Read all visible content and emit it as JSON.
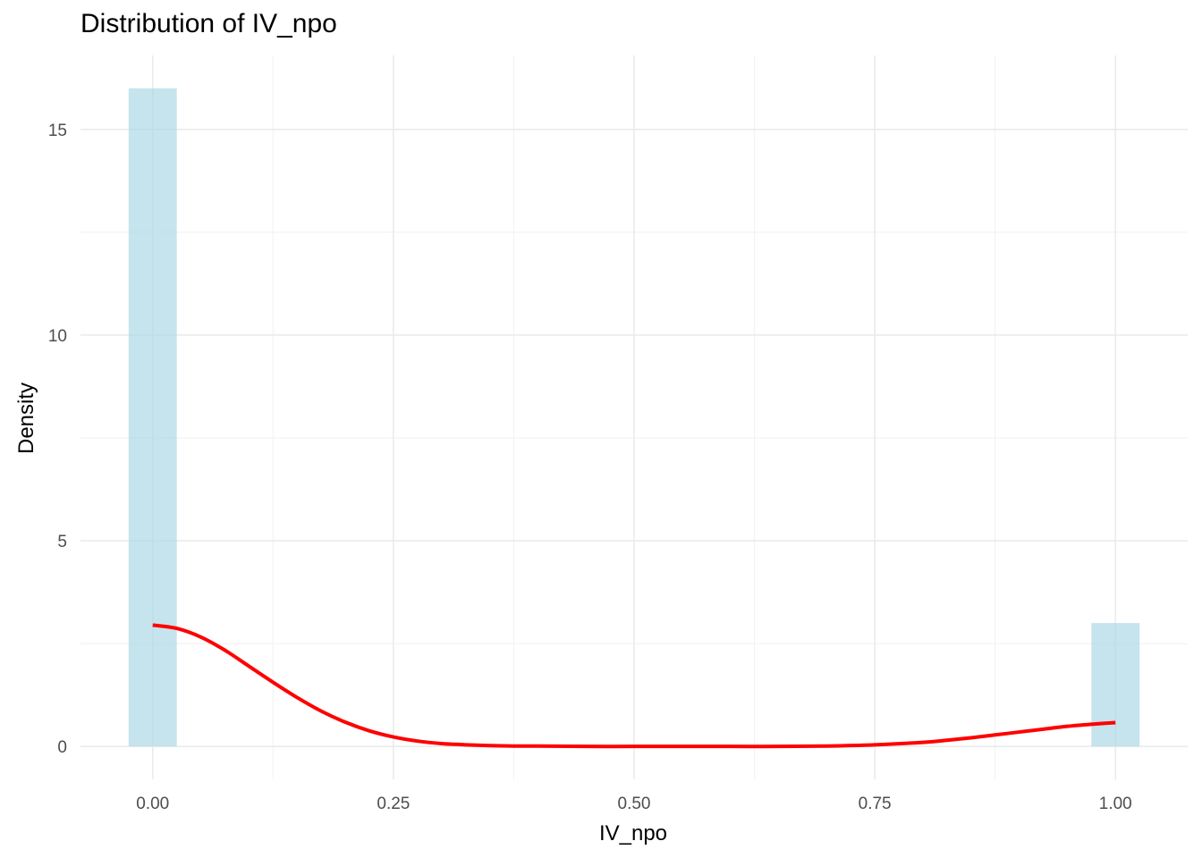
{
  "chart_data": {
    "type": "histogram",
    "title": "Distribution of IV_npo",
    "xlabel": "IV_npo",
    "ylabel": "Density",
    "xlim": [
      -0.075,
      1.075
    ],
    "ylim": [
      -0.8,
      16.8
    ],
    "x_ticks": [
      0,
      0.25,
      0.5,
      0.75,
      1
    ],
    "x_tick_labels": [
      "0.00",
      "0.25",
      "0.50",
      "0.75",
      "1.00"
    ],
    "y_ticks": [
      0,
      5,
      10,
      15
    ],
    "y_tick_labels": [
      "0",
      "5",
      "10",
      "15"
    ],
    "grid": true,
    "bin_width": 0.05,
    "bars": [
      {
        "x": 0.0,
        "density": 16.0
      },
      {
        "x": 1.0,
        "density": 3.0
      }
    ],
    "density_curve": {
      "x": [
        0.0,
        0.025,
        0.05,
        0.075,
        0.1,
        0.125,
        0.15,
        0.175,
        0.2,
        0.225,
        0.25,
        0.275,
        0.3,
        0.325,
        0.35,
        0.375,
        0.4,
        0.45,
        0.5,
        0.55,
        0.6,
        0.65,
        0.7,
        0.75,
        0.8,
        0.825,
        0.85,
        0.875,
        0.9,
        0.925,
        0.95,
        0.975,
        1.0
      ],
      "y": [
        2.95,
        2.87,
        2.66,
        2.34,
        1.95,
        1.56,
        1.19,
        0.86,
        0.59,
        0.38,
        0.23,
        0.13,
        0.07,
        0.04,
        0.02,
        0.01,
        0.01,
        0.0,
        0.0,
        0.0,
        0.0,
        0.0,
        0.01,
        0.04,
        0.1,
        0.15,
        0.21,
        0.28,
        0.35,
        0.42,
        0.49,
        0.54,
        0.58
      ]
    },
    "colors": {
      "bar_fill": "#add8e6",
      "density_line": "#ff0000",
      "grid_major": "#ebebeb",
      "grid_minor": "#f3f3f3"
    }
  }
}
